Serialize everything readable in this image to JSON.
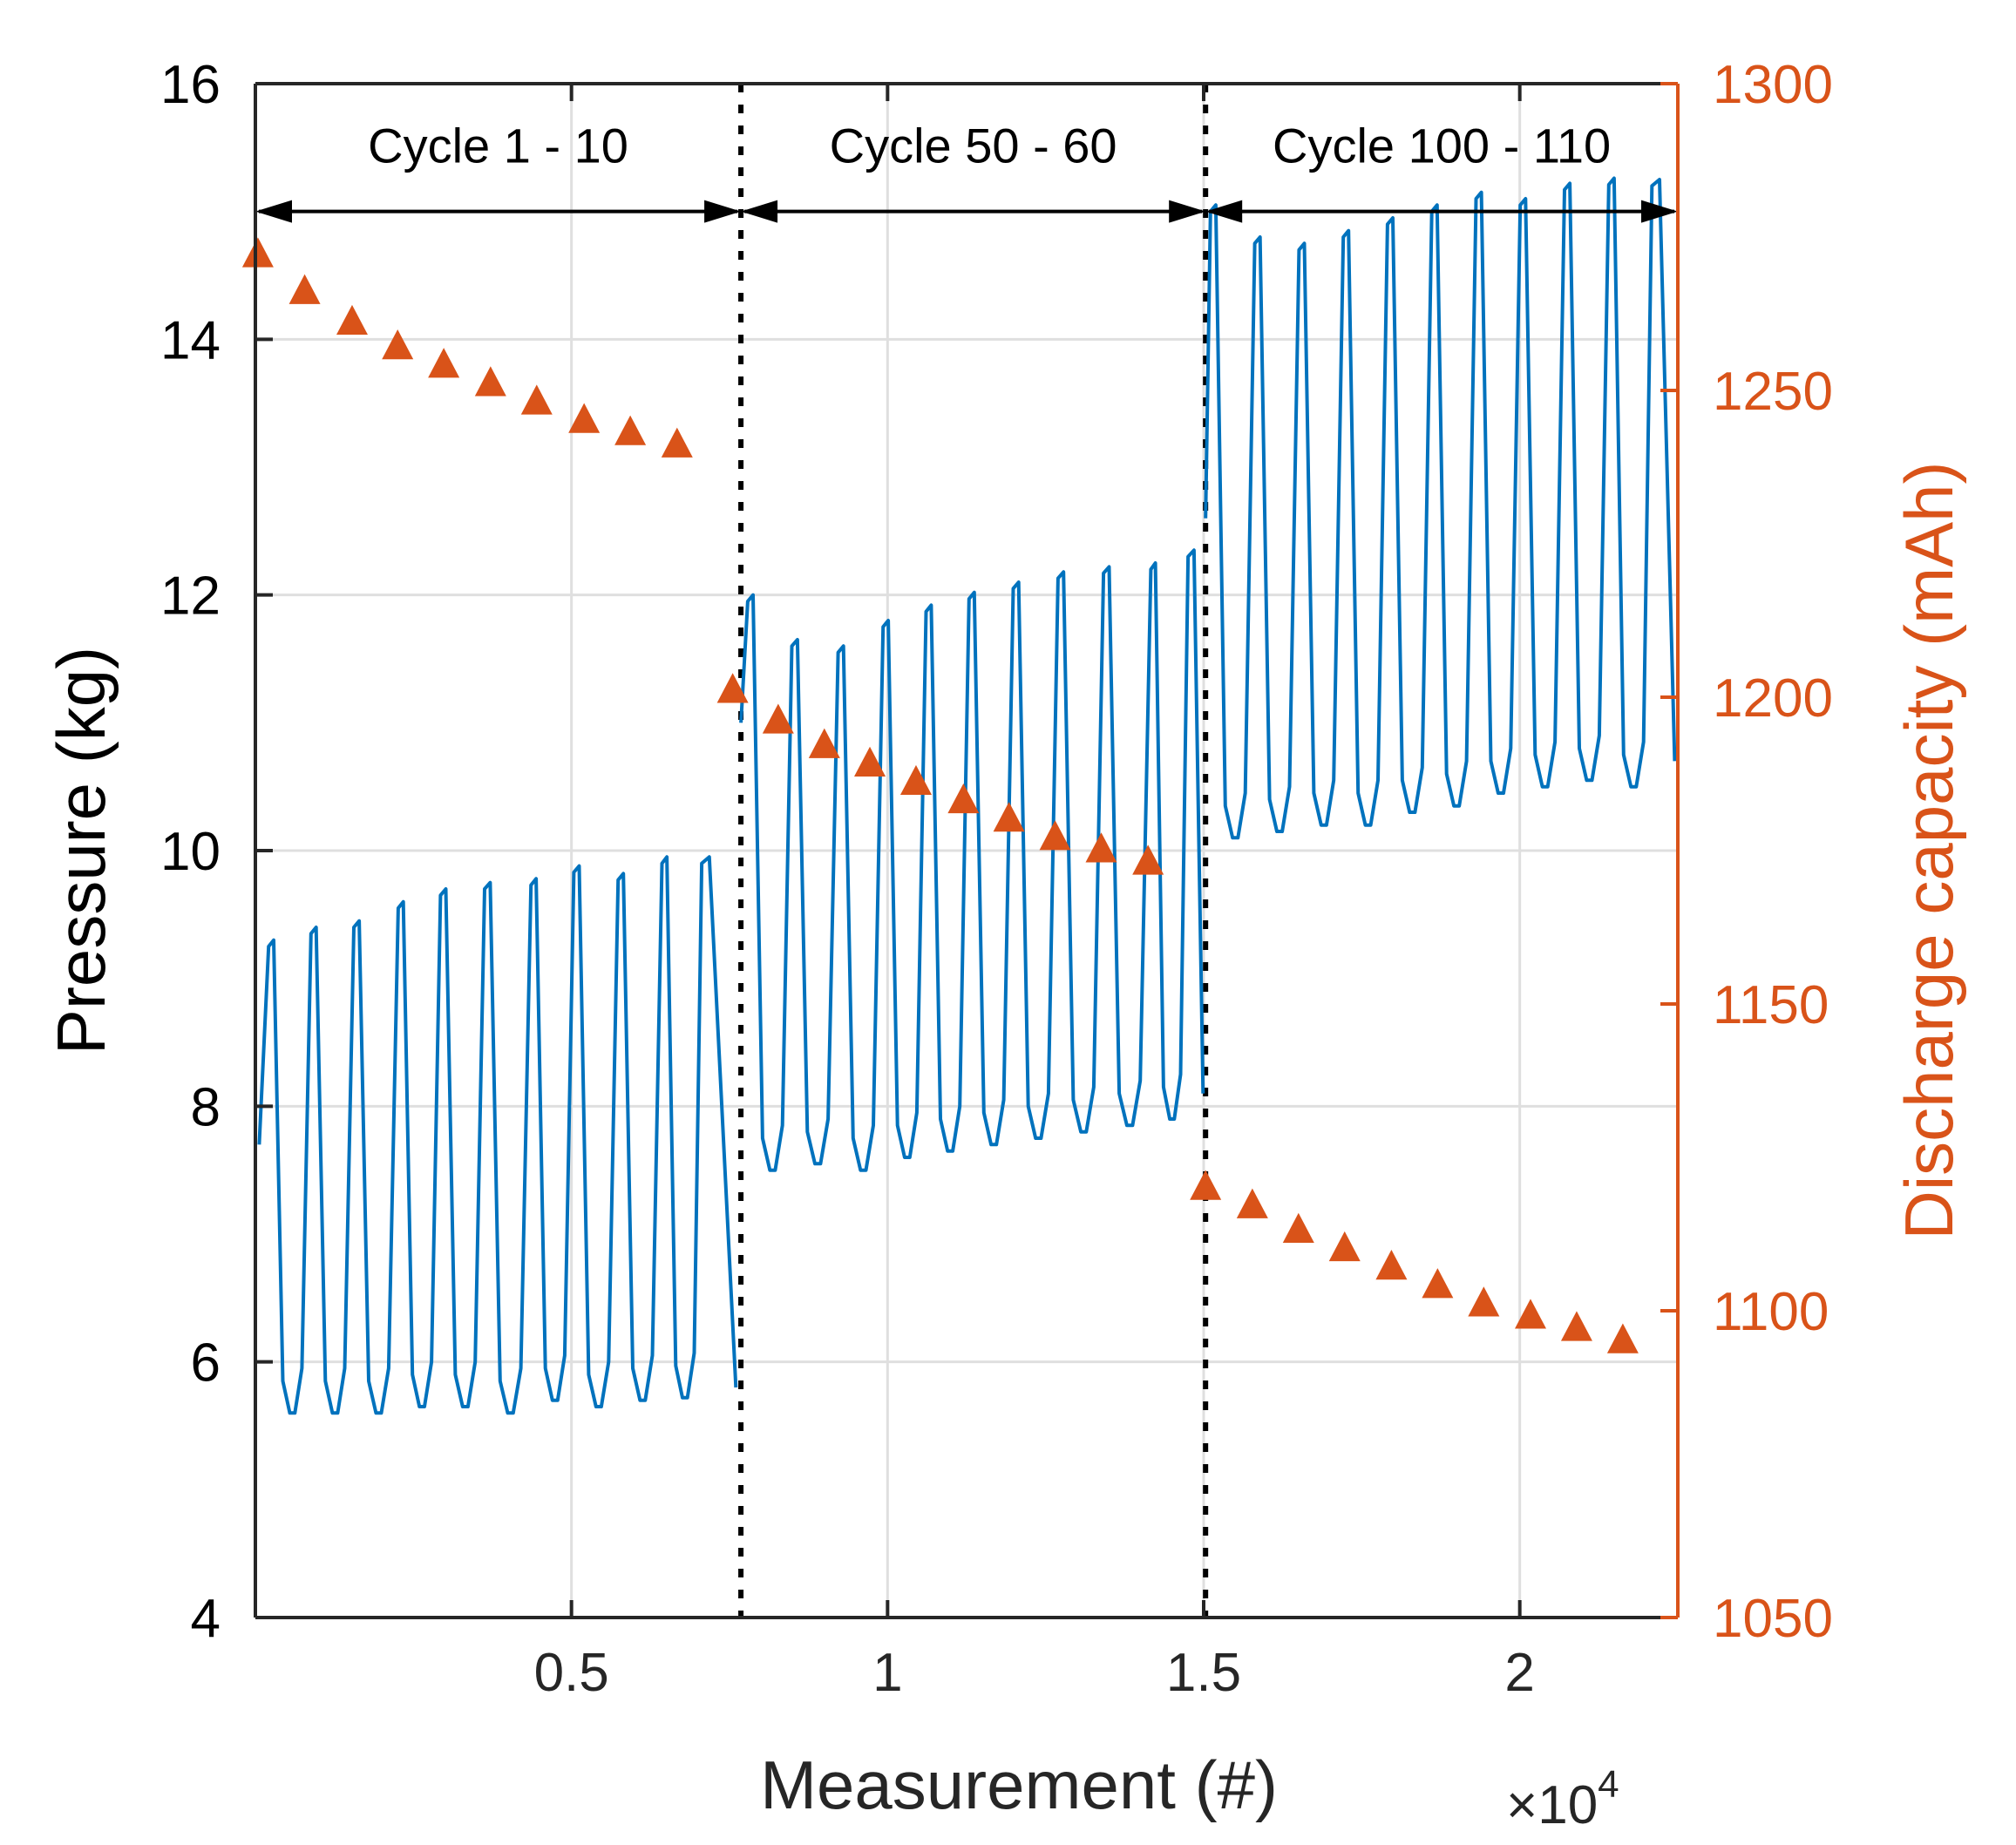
{
  "chart_data": {
    "type": "line",
    "title": "",
    "xlabel": "Measurement (#)",
    "ylabel_left": "Pressure (kg)",
    "ylabel_right": "Discharge capacity (mAh)",
    "x_exponent_label": "×10",
    "x_exponent_power": "4",
    "xlim": [
      0,
      22500
    ],
    "ylim_left": [
      4,
      16
    ],
    "ylim_right": [
      1050,
      1300
    ],
    "x_ticks": [
      5000,
      10000,
      15000,
      20000
    ],
    "x_tick_labels": [
      "0.5",
      "1",
      "1.5",
      "2"
    ],
    "y_left_ticks": [
      4,
      6,
      8,
      10,
      12,
      14,
      16
    ],
    "y_left_tick_labels": [
      "4",
      "6",
      "8",
      "10",
      "12",
      "14",
      "16"
    ],
    "y_right_ticks": [
      1050,
      1100,
      1150,
      1200,
      1250,
      1300
    ],
    "y_right_tick_labels": [
      "1050",
      "1100",
      "1150",
      "1200",
      "1250",
      "1300"
    ],
    "grid": true,
    "colors": {
      "pressure": "#0072BD",
      "capacity": "#D95319",
      "axis": "#262626",
      "grid": "#DFDFDF"
    },
    "segment_separators_x": [
      7680,
      15030
    ],
    "annotations": [
      {
        "text": "Cycle 1 - 10",
        "x_start": 0,
        "x_end": 7680
      },
      {
        "text": "Cycle 50 - 60",
        "x_start": 7680,
        "x_end": 15030
      },
      {
        "text": "Cycle 100 - 110",
        "x_start": 15030,
        "x_end": 22500
      }
    ],
    "annotation_arrow_y": 15,
    "series": [
      {
        "name": "Pressure",
        "axis": "left",
        "style": "line",
        "segments": [
          {
            "x_start": 60,
            "x_end": 7600,
            "peaks_x": [
              250,
              920,
              1600,
              2300,
              2970,
              3670,
              4400,
              5080,
              5780,
              6470,
              7120
            ],
            "peaks_y": [
              9.3,
              9.4,
              9.45,
              9.6,
              9.7,
              9.75,
              9.78,
              9.88,
              9.82,
              9.95,
              9.95
            ],
            "valleys_y": [
              5.6,
              5.6,
              5.6,
              5.65,
              5.65,
              5.6,
              5.7,
              5.65,
              5.7,
              5.72,
              5.75
            ],
            "start_y": 7.7,
            "end_y": 5.8
          },
          {
            "x_start": 7680,
            "x_end": 14990,
            "peaks_x": [
              7830,
              8530,
              9260,
              9970,
              10650,
              11330,
              12030,
              12740,
              13460,
              14200,
              14800
            ],
            "peaks_y": [
              12.0,
              11.65,
              11.6,
              11.8,
              11.92,
              12.02,
              12.1,
              12.18,
              12.22,
              12.25,
              12.35
            ],
            "valleys_y": [
              7.5,
              7.55,
              7.5,
              7.6,
              7.65,
              7.7,
              7.75,
              7.8,
              7.85,
              7.9,
              8.0
            ],
            "start_y": 11.0,
            "end_y": 8.1
          },
          {
            "x_start": 15030,
            "x_end": 22450,
            "peaks_x": [
              15150,
              15850,
              16550,
              17250,
              17950,
              18650,
              19350,
              20050,
              20750,
              21450,
              22150
            ],
            "peaks_y": [
              15.05,
              14.8,
              14.75,
              14.85,
              14.95,
              15.05,
              15.15,
              15.1,
              15.22,
              15.26,
              15.25
            ],
            "valleys_y": [
              10.1,
              10.15,
              10.2,
              10.2,
              10.3,
              10.35,
              10.45,
              10.5,
              10.55,
              10.5,
              10.55
            ],
            "start_y": 12.6,
            "end_y": 10.7
          }
        ]
      },
      {
        "name": "Discharge capacity",
        "axis": "right",
        "style": "markers",
        "x": [
          40,
          780,
          1530,
          2250,
          2980,
          3720,
          4450,
          5200,
          5930,
          6670,
          7550,
          8270,
          9000,
          9720,
          10450,
          11200,
          11920,
          12650,
          13380,
          14120,
          15030,
          15770,
          16500,
          17230,
          17970,
          18700,
          19430,
          20170,
          20900,
          21630
        ],
        "y": [
          1272,
          1266,
          1261,
          1257,
          1254,
          1251,
          1248,
          1245,
          1243,
          1241,
          1201,
          1196,
          1192,
          1189,
          1186,
          1183,
          1180,
          1177,
          1175,
          1173,
          1120,
          1117,
          1113,
          1110,
          1107,
          1104,
          1101,
          1099,
          1097,
          1095
        ]
      }
    ]
  }
}
